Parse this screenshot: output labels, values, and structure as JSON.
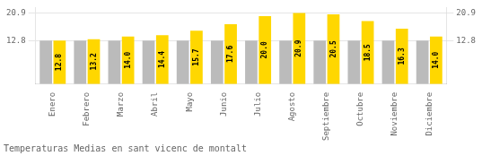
{
  "chart_data": {
    "type": "bar",
    "title": "Temperaturas Medias en sant vicenc de montalt",
    "categories": [
      "Enero",
      "Febrero",
      "Marzo",
      "Abril",
      "Mayo",
      "Junio",
      "Julio",
      "Agosto",
      "Septiembre",
      "Octubre",
      "Noviembre",
      "Diciembre"
    ],
    "series": [
      {
        "color": "#BBBBBB",
        "values": [
          12.8,
          12.8,
          12.8,
          12.8,
          12.8,
          12.8,
          12.8,
          12.8,
          12.8,
          12.8,
          12.8,
          12.8
        ]
      },
      {
        "color": "#FFD700",
        "values": [
          12.8,
          13.2,
          14.0,
          14.4,
          15.7,
          17.6,
          20.0,
          20.9,
          20.5,
          18.5,
          16.3,
          14.0
        ],
        "data_labels": true,
        "value_labels": [
          "12.8",
          "13.2",
          "14.0",
          "14.4",
          "15.7",
          "17.6",
          "20.0",
          "20.9",
          "20.5",
          "18.5",
          "16.3",
          "14.0"
        ]
      }
    ],
    "ylim": [
      0,
      22.5
    ],
    "yticks": [
      12.8,
      20.9
    ],
    "y2lim": [
      0,
      22.5
    ],
    "y2ticks": [
      12.8,
      20.9
    ],
    "grid": true
  }
}
